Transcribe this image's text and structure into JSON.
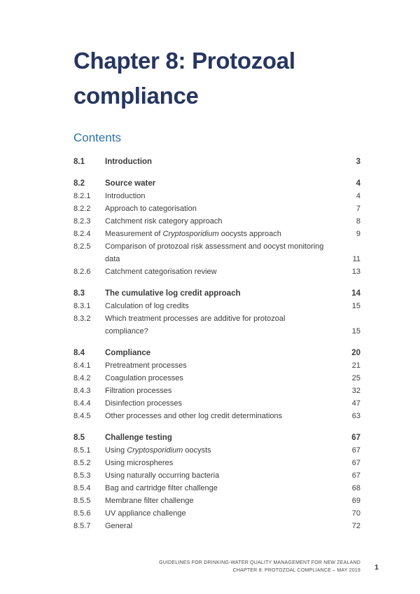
{
  "doc": {
    "title": "Chapter 8: Protozoal compliance",
    "contents_heading": "Contents"
  },
  "colors": {
    "title_navy": "#26365f",
    "heading_blue": "#2e72a4",
    "body_text": "#3c3c3c",
    "footer_text": "#4b4b4b"
  },
  "toc": {
    "sections": [
      {
        "num": "8.1",
        "title": "Introduction",
        "page": "3",
        "entries": []
      },
      {
        "num": "8.2",
        "title": "Source water",
        "page": "4",
        "entries": [
          {
            "num": "8.2.1",
            "title": "Introduction",
            "page": "4"
          },
          {
            "num": "8.2.2",
            "title": "Approach to categorisation",
            "page": "7"
          },
          {
            "num": "8.2.3",
            "title": "Catchment risk category approach",
            "page": "8"
          },
          {
            "num": "8.2.4",
            "title": "Measurement of *Cryptosporidium* oocysts approach",
            "page": "9"
          },
          {
            "num": "8.2.5",
            "title": "Comparison of protozoal risk assessment and oocyst monitoring data",
            "page": "11"
          },
          {
            "num": "8.2.6",
            "title": "Catchment categorisation review",
            "page": "13"
          }
        ]
      },
      {
        "num": "8.3",
        "title": "The cumulative log credit approach",
        "page": "14",
        "entries": [
          {
            "num": "8.3.1",
            "title": "Calculation of log credits",
            "page": "15"
          },
          {
            "num": "8.3.2",
            "title": "Which treatment processes are additive for protozoal compliance?",
            "page": "15"
          }
        ]
      },
      {
        "num": "8.4",
        "title": "Compliance",
        "page": "20",
        "entries": [
          {
            "num": "8.4.1",
            "title": "Pretreatment processes",
            "page": "21"
          },
          {
            "num": "8.4.2",
            "title": "Coagulation processes",
            "page": "25"
          },
          {
            "num": "8.4.3",
            "title": "Filtration processes",
            "page": "32"
          },
          {
            "num": "8.4.4",
            "title": "Disinfection processes",
            "page": "47"
          },
          {
            "num": "8.4.5",
            "title": "Other processes and other log credit determinations",
            "page": "63"
          }
        ]
      },
      {
        "num": "8.5",
        "title": "Challenge testing",
        "page": "67",
        "entries": [
          {
            "num": "8.5.1",
            "title": "Using *Cryptosporidium* oocysts",
            "page": "67"
          },
          {
            "num": "8.5.2",
            "title": "Using microspheres",
            "page": "67"
          },
          {
            "num": "8.5.3",
            "title": "Using naturally occurring bacteria",
            "page": "67"
          },
          {
            "num": "8.5.4",
            "title": "Bag and cartridge filter challenge",
            "page": "68"
          },
          {
            "num": "8.5.5",
            "title": "Membrane filter challenge",
            "page": "69"
          },
          {
            "num": "8.5.6",
            "title": "UV appliance challenge",
            "page": "70"
          },
          {
            "num": "8.5.7",
            "title": "General",
            "page": "72"
          }
        ]
      }
    ]
  },
  "footer": {
    "line1": "GUIDELINES FOR DRINKING-WATER QUALITY MANAGEMENT FOR NEW ZEALAND",
    "line2": "CHAPTER 8: PROTOZOAL COMPLIANCE – MAY 2019",
    "page_number": "1"
  }
}
